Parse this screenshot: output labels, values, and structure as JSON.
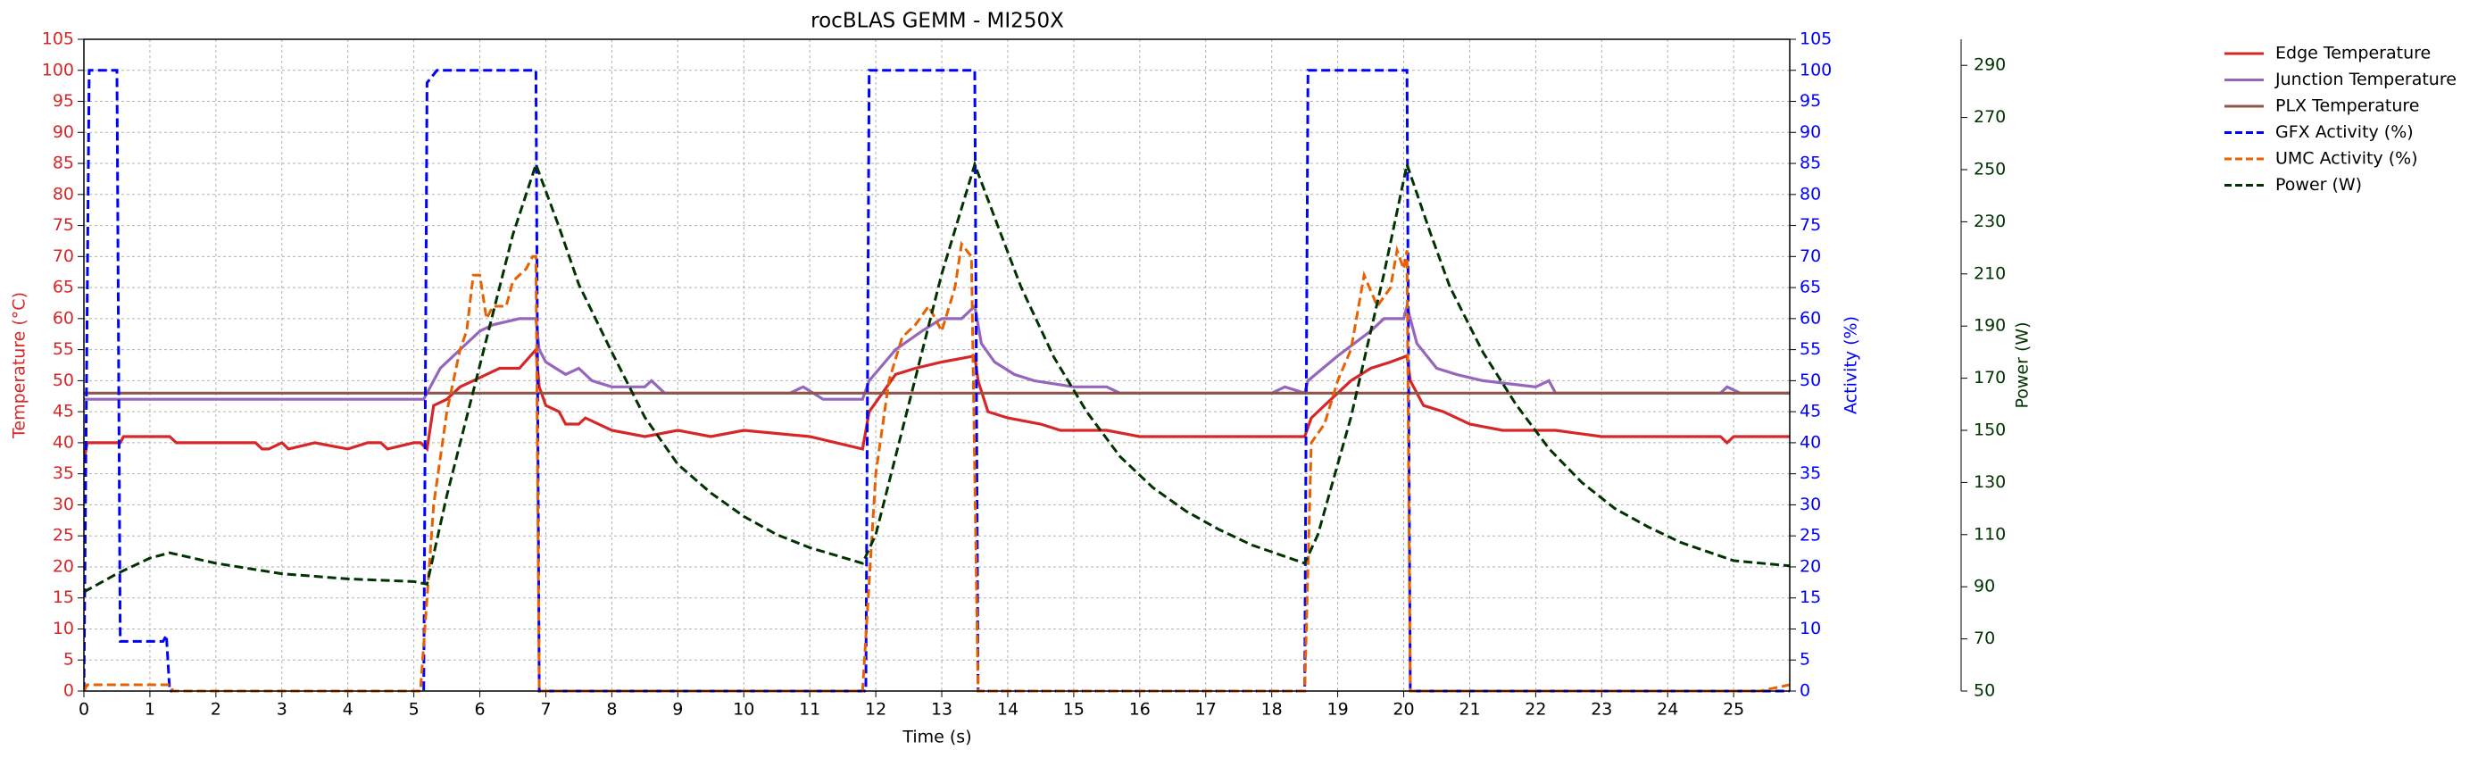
{
  "chart_data": {
    "type": "line",
    "title": "rocBLAS GEMM - MI250X",
    "xlabel": "Time (s)",
    "ylabel": "Temperature (°C)",
    "y2label": "Activity (%)",
    "y3label": "Power (W)",
    "xlim": [
      0,
      25.85
    ],
    "xticks": [
      0,
      1,
      2,
      3,
      4,
      5,
      6,
      7,
      8,
      9,
      10,
      11,
      12,
      13,
      14,
      15,
      16,
      17,
      18,
      19,
      20,
      21,
      22,
      23,
      24,
      25
    ],
    "ylim": [
      0,
      105
    ],
    "yticks": [
      0,
      5,
      10,
      15,
      20,
      25,
      30,
      35,
      40,
      45,
      50,
      55,
      60,
      65,
      70,
      75,
      80,
      85,
      90,
      95,
      100,
      105
    ],
    "y2lim": [
      0,
      105
    ],
    "y2ticks": [
      0,
      5,
      10,
      15,
      20,
      25,
      30,
      35,
      40,
      45,
      50,
      55,
      60,
      65,
      70,
      75,
      80,
      85,
      90,
      95,
      100,
      105
    ],
    "y3lim": [
      50,
      300
    ],
    "y3ticks": [
      50,
      70,
      90,
      110,
      130,
      150,
      170,
      190,
      210,
      230,
      250,
      270,
      290
    ],
    "grid": true,
    "legend_position": "right",
    "ylabel_color": "#d62728",
    "y2label_color": "#0000ff",
    "y3label_color": "#003300",
    "series": [
      {
        "name": "Edge Temperature",
        "color": "#d62728",
        "style": "solid",
        "axis": "y",
        "x": [
          0,
          0.05,
          0.55,
          0.6,
          1.3,
          1.4,
          2.6,
          2.7,
          2.8,
          3.0,
          3.1,
          3.5,
          4.0,
          4.3,
          4.5,
          4.6,
          5.0,
          5.1,
          5.2,
          5.3,
          5.5,
          5.7,
          5.9,
          6.1,
          6.3,
          6.6,
          6.85,
          6.9,
          7.0,
          7.2,
          7.3,
          7.5,
          7.6,
          8,
          8.5,
          9,
          9.5,
          10,
          11,
          11.8,
          11.9,
          12.1,
          12.3,
          12.6,
          13,
          13.5,
          13.55,
          13.7,
          14,
          14.5,
          14.8,
          15.5,
          16,
          18.5,
          18.6,
          18.9,
          19.2,
          19.5,
          19.8,
          20.05,
          20.1,
          20.3,
          20.6,
          21,
          21.5,
          22.3,
          23.0,
          24.8,
          24.9,
          25,
          25.85
        ],
        "values": [
          37,
          40,
          40,
          41,
          41,
          40,
          40,
          39,
          39,
          40,
          39,
          40,
          39,
          40,
          40,
          39,
          40,
          40,
          39,
          46,
          47,
          49,
          50,
          51,
          52,
          52,
          55,
          49,
          46,
          45,
          43,
          43,
          44,
          42,
          41,
          42,
          41,
          42,
          41,
          39,
          45,
          48,
          51,
          52,
          53,
          54,
          50,
          45,
          44,
          43,
          42,
          42,
          41,
          41,
          44,
          47,
          50,
          52,
          53,
          54,
          50,
          46,
          45,
          43,
          42,
          42,
          41,
          41,
          40,
          41,
          41
        ]
      },
      {
        "name": "Junction Temperature",
        "color": "#9467bd",
        "style": "solid",
        "axis": "y",
        "x": [
          0,
          5.15,
          5.4,
          5.7,
          6.0,
          6.2,
          6.6,
          6.85,
          6.9,
          7.0,
          7.3,
          7.5,
          7.7,
          8,
          8.5,
          8.6,
          8.8,
          10.7,
          10.9,
          11.2,
          11.8,
          11.9,
          12.3,
          12.7,
          13,
          13.3,
          13.5,
          13.6,
          13.8,
          14.1,
          14.4,
          15,
          15.5,
          15.7,
          18.0,
          18.2,
          18.5,
          18.55,
          19,
          19.5,
          19.7,
          20,
          20.05,
          20.2,
          20.5,
          20.8,
          21.2,
          22,
          22.2,
          22.3,
          24.8,
          24.9,
          25.1,
          25.85
        ],
        "values": [
          47,
          47,
          52,
          55,
          58,
          59,
          60,
          60,
          55,
          53,
          51,
          52,
          50,
          49,
          49,
          50,
          48,
          48,
          49,
          47,
          47,
          50,
          55,
          58,
          60,
          60,
          62,
          56,
          53,
          51,
          50,
          49,
          49,
          48,
          48,
          49,
          48,
          50,
          54,
          58,
          60,
          60,
          62,
          56,
          52,
          51,
          50,
          49,
          50,
          48,
          48,
          49,
          48,
          48
        ]
      },
      {
        "name": "PLX Temperature",
        "color": "#8c564b",
        "style": "solid",
        "axis": "y",
        "x": [
          0,
          25.85
        ],
        "values": [
          48,
          48
        ]
      },
      {
        "name": "GFX Activity (%)",
        "color": "#0000ff",
        "style": "dashed",
        "axis": "y2",
        "x": [
          0,
          0.08,
          0.5,
          0.55,
          1.2,
          1.25,
          1.3,
          5.15,
          5.2,
          5.35,
          6.85,
          6.9,
          11.85,
          11.9,
          13.5,
          13.55,
          18.5,
          18.55,
          20.05,
          20.1,
          25.85
        ],
        "values": [
          0,
          100,
          100,
          8,
          8,
          9,
          0,
          0,
          98,
          100,
          100,
          0,
          0,
          100,
          100,
          0,
          0,
          100,
          100,
          0,
          0
        ]
      },
      {
        "name": "UMC Activity (%)",
        "color": "#e66101",
        "style": "dashed",
        "axis": "y2",
        "x": [
          0,
          0.05,
          1.3,
          1.35,
          5.1,
          5.3,
          5.5,
          5.7,
          5.8,
          5.9,
          6.0,
          6.1,
          6.2,
          6.4,
          6.5,
          6.7,
          6.8,
          6.85,
          6.9,
          11.8,
          12.0,
          12.2,
          12.4,
          12.6,
          12.8,
          13.0,
          13.2,
          13.3,
          13.45,
          13.55,
          18.5,
          18.6,
          18.8,
          19.0,
          19.2,
          19.4,
          19.6,
          19.8,
          19.9,
          20.0,
          20.05,
          20.1,
          25.4,
          25.85
        ],
        "values": [
          0,
          1,
          1,
          0,
          0,
          30,
          45,
          55,
          58,
          67,
          67,
          60,
          62,
          62,
          66,
          68,
          70,
          70,
          0,
          0,
          35,
          50,
          57,
          59,
          62,
          58,
          65,
          72,
          70,
          0,
          0,
          40,
          43,
          50,
          55,
          67,
          62,
          65,
          71,
          68,
          71,
          0,
          0,
          1
        ]
      },
      {
        "name": "Power (W)",
        "color": "#003300",
        "style": "dashed",
        "axis": "y3",
        "x": [
          0,
          0.5,
          1,
          1.3,
          2,
          2.5,
          3,
          4,
          5,
          5.2,
          5.5,
          6,
          6.5,
          6.85,
          7.2,
          7.5,
          8,
          8.5,
          9,
          9.5,
          10,
          10.5,
          11,
          11.8,
          12.0,
          12.5,
          13,
          13.5,
          13.9,
          14.2,
          14.7,
          15.2,
          15.7,
          16.2,
          16.7,
          17.2,
          17.7,
          18.5,
          18.7,
          19.2,
          19.7,
          20.05,
          20.4,
          20.7,
          21.2,
          21.7,
          22.2,
          22.7,
          23.2,
          23.7,
          24.2,
          25,
          25.85
        ],
        "values": [
          88,
          95,
          101,
          103,
          99,
          97,
          95,
          93,
          92,
          91,
          125,
          175,
          225,
          252,
          228,
          206,
          180,
          155,
          137,
          126,
          117,
          110,
          105,
          99,
          110,
          160,
          210,
          252,
          225,
          205,
          178,
          157,
          140,
          128,
          119,
          112,
          106,
          99,
          110,
          155,
          210,
          252,
          226,
          205,
          180,
          160,
          143,
          130,
          120,
          113,
          107,
          100,
          98
        ]
      }
    ]
  }
}
